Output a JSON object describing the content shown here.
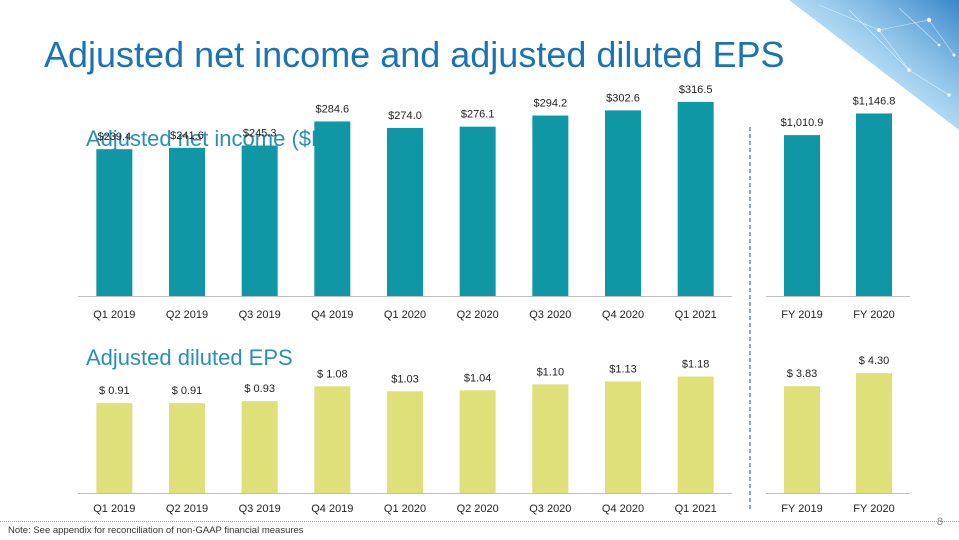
{
  "title": "Adjusted net income and adjusted diluted EPS",
  "footnote": "Note: See appendix for reconciliation of non-GAAP financial measures",
  "page_number": "8",
  "colors": {
    "title": "#1a73b5",
    "section_title": "#2a8fb8",
    "net_income_bar": "#0f97a6",
    "eps_bar": "#dfe07a",
    "divider": "#5b8fd6"
  },
  "chart_data": [
    {
      "type": "bar",
      "title": "Adjusted net income ($M)",
      "categories": [
        "Q1 2019",
        "Q2 2019",
        "Q3 2019",
        "Q4 2019",
        "Q1 2020",
        "Q2 2020",
        "Q3 2020",
        "Q4 2020",
        "Q1 2021"
      ],
      "values": [
        239.4,
        241.6,
        245.3,
        284.6,
        274.0,
        276.1,
        294.2,
        302.6,
        316.5
      ],
      "labels": [
        "$239.4",
        "$241.6",
        "$245.3",
        "$284.6",
        "$274.0",
        "$276.1",
        "$294.2",
        "$302.6",
        "$316.5"
      ],
      "ylim": [
        0,
        375
      ],
      "grid": false
    },
    {
      "type": "bar",
      "title": "",
      "categories": [
        "FY 2019",
        "FY 2020"
      ],
      "values": [
        1010.9,
        1146.8
      ],
      "labels": [
        "$1,010.9",
        "$1,146.8"
      ],
      "ylim": [
        0,
        1175
      ],
      "grid": false
    },
    {
      "type": "bar",
      "title": "Adjusted diluted EPS",
      "categories": [
        "Q1 2019",
        "Q2 2019",
        "Q3 2019",
        "Q4 2019",
        "Q1 2020",
        "Q2 2020",
        "Q3 2020",
        "Q4 2020",
        "Q1 2021"
      ],
      "values": [
        0.91,
        0.91,
        0.93,
        1.08,
        1.03,
        1.04,
        1.1,
        1.13,
        1.18
      ],
      "labels": [
        "$ 0.91",
        "$ 0.91",
        "$ 0.93",
        "$ 1.08",
        "$1.03",
        "$1.04",
        "$1.10",
        "$1.13",
        "$1.18"
      ],
      "ylim": [
        0,
        1.6
      ],
      "grid": false
    },
    {
      "type": "bar",
      "title": "",
      "categories": [
        "FY 2019",
        "FY 2020"
      ],
      "values": [
        3.83,
        4.3
      ],
      "labels": [
        "$ 3.83",
        "$ 4.30"
      ],
      "ylim": [
        0,
        4.7
      ],
      "grid": false
    }
  ]
}
